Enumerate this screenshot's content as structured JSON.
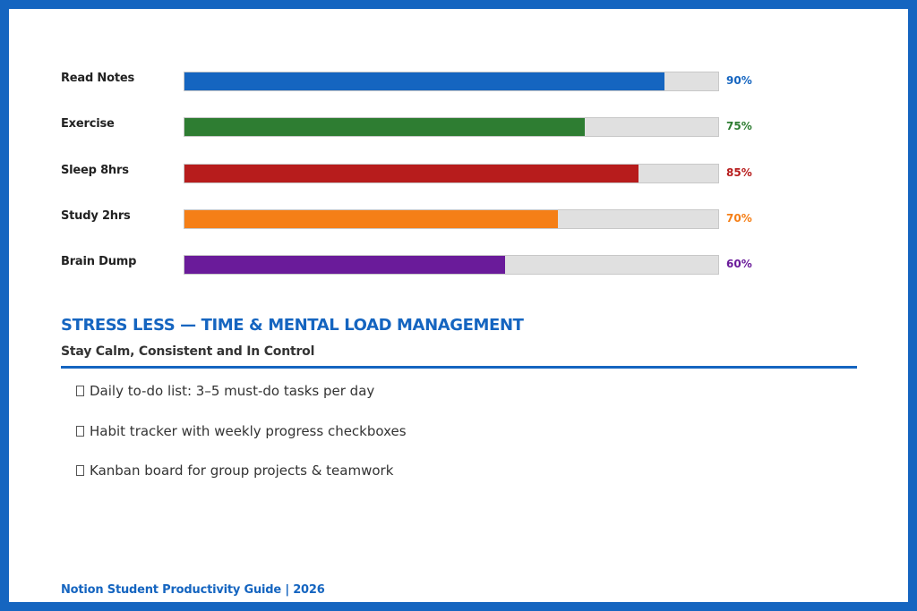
{
  "habits": [
    {
      "label": "Read Notes",
      "percent": 90,
      "percent_label": "90%",
      "color": "#1565c0"
    },
    {
      "label": "Exercise",
      "percent": 75,
      "percent_label": "75%",
      "color": "#2e7d32"
    },
    {
      "label": "Sleep 8hrs",
      "percent": 85,
      "percent_label": "85%",
      "color": "#b71c1c"
    },
    {
      "label": "Study 2hrs",
      "percent": 70,
      "percent_label": "70%",
      "color": "#f57f17"
    },
    {
      "label": "Brain Dump",
      "percent": 60,
      "percent_label": "60%",
      "color": "#6a1b9a"
    }
  ],
  "section": {
    "title": "STRESS LESS — TIME & MENTAL LOAD MANAGEMENT",
    "subtitle": "Stay Calm, Consistent and In Control"
  },
  "checklist": [
    "Daily to-do list: 3–5 must-do tasks per day",
    "Habit tracker with weekly progress checkboxes",
    "Kanban board for group projects & teamwork"
  ],
  "footer": "Notion Student Productivity Guide  |  2026",
  "colors": {
    "accent": "#1565c0",
    "frame": "#1565c0",
    "track": "#e0e0e0"
  }
}
